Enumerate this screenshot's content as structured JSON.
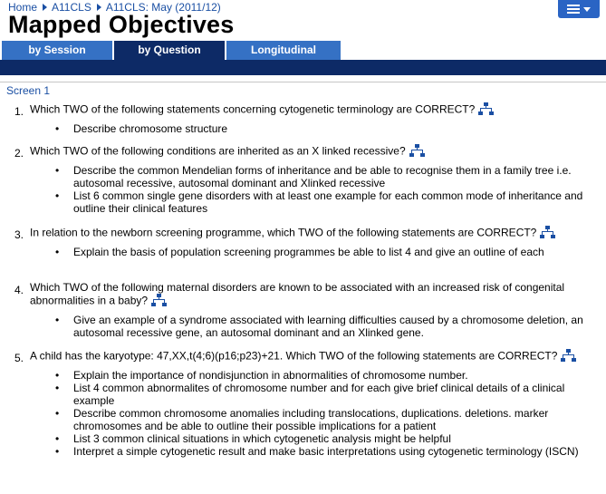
{
  "breadcrumb": {
    "items": [
      "Home",
      "A11CLS",
      "A11CLS: May (2011/12)"
    ]
  },
  "page_title": "Mapped Objectives",
  "menu": {
    "icon": "hamburger-menu-icon"
  },
  "tabs": [
    {
      "label": "by Session"
    },
    {
      "label": "by Question"
    },
    {
      "label": "Longitudinal"
    }
  ],
  "active_tab": "by Question",
  "screen_label": "Screen 1",
  "questions": [
    {
      "number": "1.",
      "text": "Which TWO of the following statements concerning cytogenetic terminology are CORRECT?",
      "objectives": [
        "Describe chromosome structure"
      ]
    },
    {
      "number": "2.",
      "text": "Which TWO of the following conditions are inherited as an X linked recessive?",
      "objectives": [
        "Describe the common Mendelian forms of inheritance and be able to recognise them in a family tree i.e. autosomal recessive, autosomal dominant and Xlinked recessive",
        "List 6 common single gene disorders with at least one example for each common mode of inheritance and outline their clinical features"
      ]
    },
    {
      "number": "3.",
      "text": "In relation to the newborn screening programme, which TWO of the following statements are CORRECT?",
      "objectives": [
        "Explain the basis of population screening programmes be able to list 4 and give an outline of each"
      ]
    },
    {
      "number": "4.",
      "text": "Which TWO of the following maternal disorders are known to be associated with an increased risk of congenital abnormalities in a baby?",
      "objectives": [
        "Give an example of a syndrome associated with learning difficulties caused by a chromosome deletion, an autosomal recessive gene, an autosomal dominant and an Xlinked gene."
      ]
    },
    {
      "number": "5.",
      "text": "A child has the karyotype: 47,XX,t(4;6)(p16;p23)+21. Which TWO of the following statements are CORRECT?",
      "objectives": [
        "Explain the importance of nondisjunction in abnormalities of chromosome number.",
        "List 4 common abnormalites of chromosome number and for each give brief clinical details of a clinical example",
        "Describe common chromosome anomalies including translocations, duplications. deletions. marker chromosomes and be able to outline their possible implications for a patient",
        "List 3 common clinical situations in which cytogenetic analysis might be helpful",
        "Interpret a simple cytogenetic result and make basic interpretations using cytogenetic terminology (ISCN)"
      ]
    }
  ],
  "colors": {
    "link": "#1a4fa3",
    "tab": "#3571c4",
    "tab_active": "#0d2a66",
    "bar": "#0d2a66",
    "menu": "#2a64c4"
  }
}
